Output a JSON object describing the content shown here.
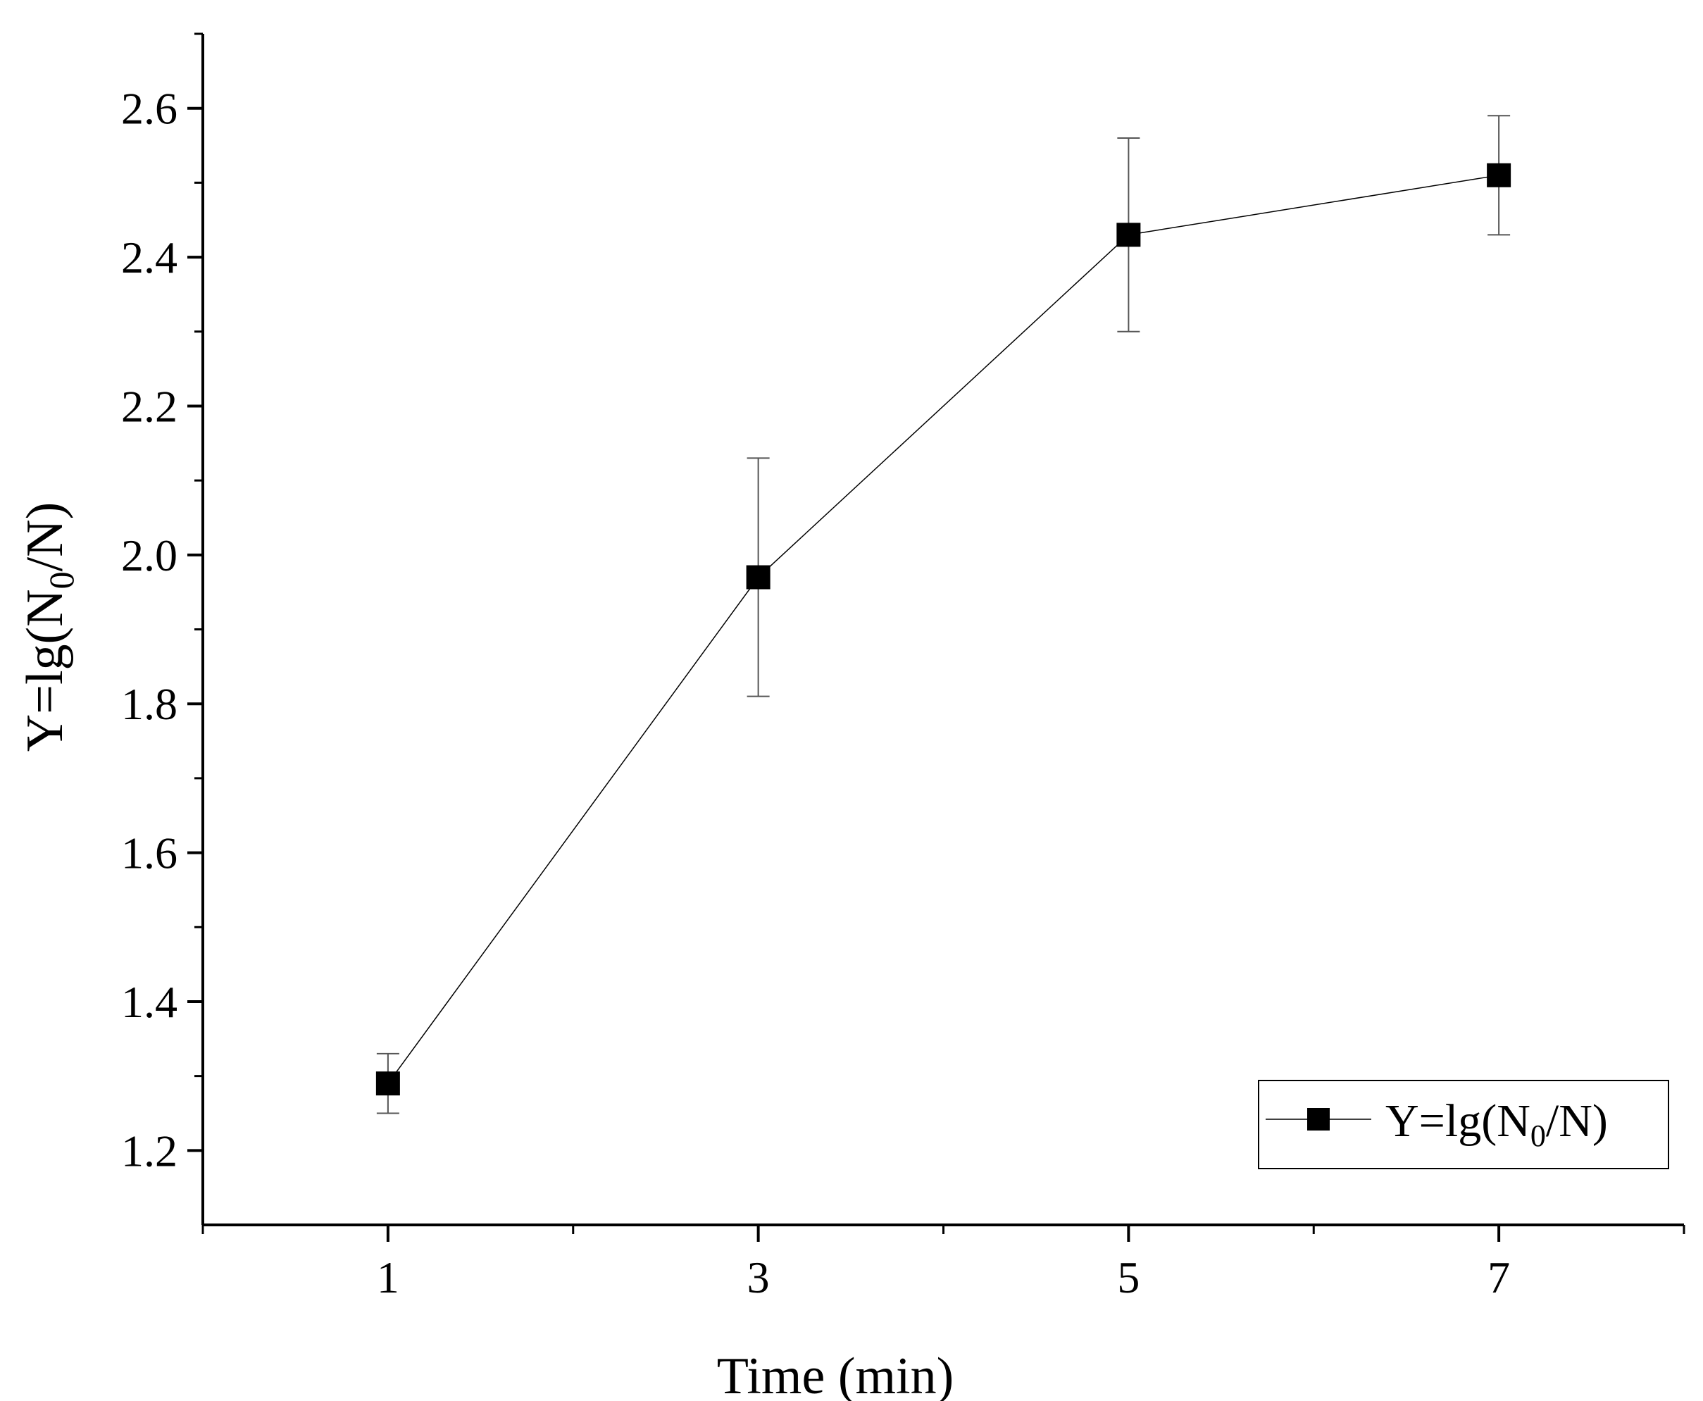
{
  "chart_data": {
    "type": "line",
    "title": "",
    "xlabel": "Time (min)",
    "ylabel": {
      "prefix": "Y=lg(N",
      "sub": "0",
      "suffix": "/N)"
    },
    "x": [
      1,
      3,
      5,
      7
    ],
    "xticks": [
      1,
      3,
      5,
      7
    ],
    "xtick_labels": [
      "1",
      "3",
      "5",
      "7"
    ],
    "xlim": [
      0,
      8
    ],
    "ylim": [
      1.1,
      2.7
    ],
    "yticks": [
      1.2,
      1.4,
      1.6,
      1.8,
      2.0,
      2.2,
      2.4,
      2.6
    ],
    "ytick_labels": [
      "1.2",
      "1.4",
      "1.6",
      "1.8",
      "2.0",
      "2.2",
      "2.4",
      "2.6"
    ],
    "grid": false,
    "legend_position": "bottom-right",
    "series": [
      {
        "name": {
          "prefix": "Y=lg(N",
          "sub": "0",
          "suffix": "/N)"
        },
        "marker": "square",
        "color": "#000000",
        "values": [
          1.29,
          1.97,
          2.43,
          2.51
        ],
        "error_upper": [
          1.33,
          2.13,
          2.56,
          2.59
        ],
        "error_lower": [
          1.25,
          1.81,
          2.3,
          2.43
        ]
      }
    ]
  }
}
